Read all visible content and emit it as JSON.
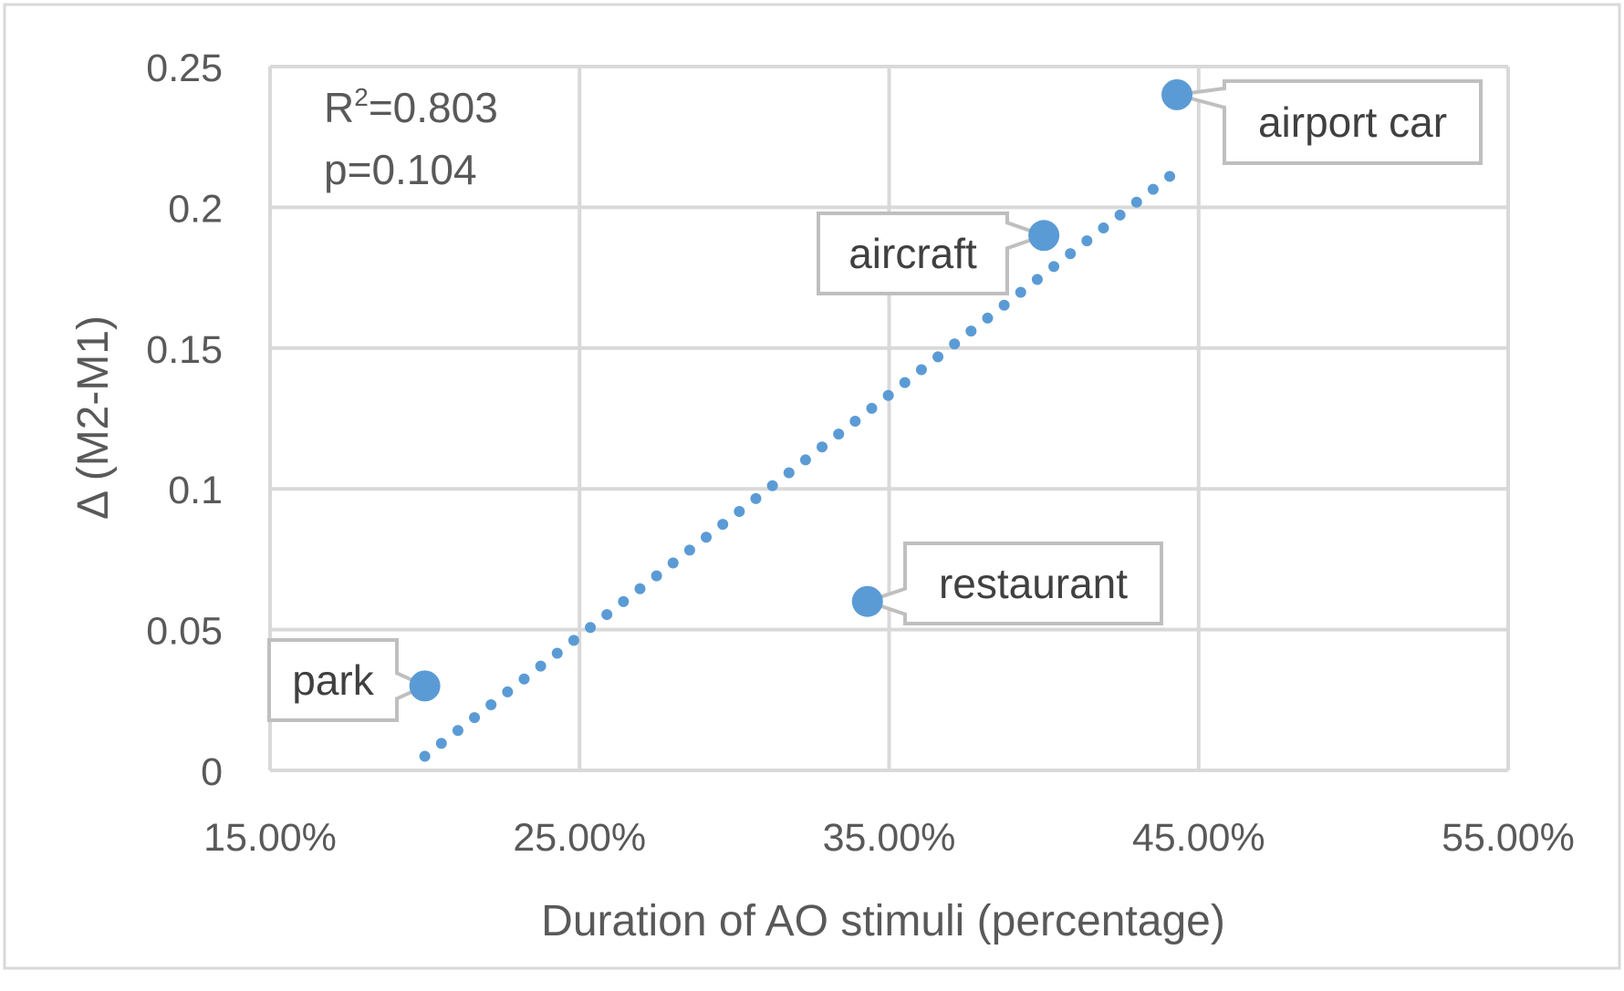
{
  "chart_data": {
    "type": "scatter",
    "title": "",
    "xlabel": "Duration of AO stimuli (percentage)",
    "ylabel": "Δ (M2-M1)",
    "xlim": [
      0.15,
      0.55
    ],
    "ylim": [
      0,
      0.25
    ],
    "x_ticks": [
      0.15,
      0.25,
      0.35,
      0.45,
      0.55
    ],
    "x_tick_labels": [
      "15.00%",
      "25.00%",
      "35.00%",
      "45.00%",
      "55.00%"
    ],
    "y_ticks": [
      0,
      0.05,
      0.1,
      0.15,
      0.2,
      0.25
    ],
    "y_tick_labels": [
      "0",
      "0.05",
      "0.1",
      "0.15",
      "0.2",
      "0.25"
    ],
    "grid": true,
    "points": [
      {
        "label": "park",
        "x": 0.2,
        "y": 0.03
      },
      {
        "label": "restaurant",
        "x": 0.343,
        "y": 0.06
      },
      {
        "label": "aircraft",
        "x": 0.4,
        "y": 0.19
      },
      {
        "label": "airport car",
        "x": 0.443,
        "y": 0.24
      }
    ],
    "trendline": {
      "style": "dotted",
      "x_start": 0.2,
      "y_start": 0.005,
      "x_end": 0.443,
      "y_end": 0.213
    },
    "annotation": {
      "r2_prefix": "R",
      "r2_sup": "2",
      "r2_value": "=0.803",
      "p": "p=0.104"
    },
    "colors": {
      "point": "#5b9bd5",
      "grid": "#d9d9d9",
      "text": "#595959"
    }
  }
}
